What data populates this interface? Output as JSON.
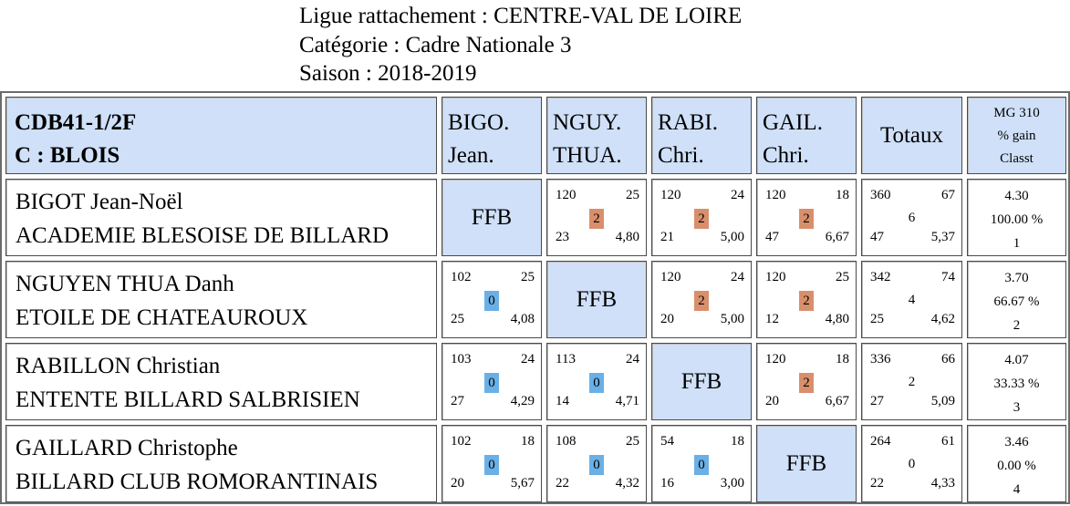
{
  "header": {
    "ligue": "Ligue rattachement : CENTRE-VAL DE LOIRE",
    "categorie": "Catégorie : Cadre Nationale 3",
    "saison": "Saison : 2018-2019"
  },
  "table": {
    "team_line1": "CDB41-1/2F",
    "team_line2": "C : BLOIS",
    "columns": [
      {
        "l1": "BIGO.",
        "l2": "Jean."
      },
      {
        "l1": "NGUY.",
        "l2": "THUA."
      },
      {
        "l1": "RABI.",
        "l2": "Chri."
      },
      {
        "l1": "GAIL.",
        "l2": "Chri."
      }
    ],
    "totals_label": "Totaux",
    "stats_header": [
      "MG 310",
      "% gain",
      "Classt"
    ],
    "ffb": "FFB",
    "rows": [
      {
        "name": "BIGOT Jean-Noël",
        "club": "ACADEMIE BLESOISE DE BILLARD",
        "cells": [
          null,
          {
            "tl": "120",
            "tr": "25",
            "bl": "23",
            "br": "4,80",
            "pts": "2",
            "win": true
          },
          {
            "tl": "120",
            "tr": "24",
            "bl": "21",
            "br": "5,00",
            "pts": "2",
            "win": true
          },
          {
            "tl": "120",
            "tr": "18",
            "bl": "47",
            "br": "6,67",
            "pts": "2",
            "win": true
          }
        ],
        "totals": {
          "tl": "360",
          "tr": "67",
          "mid": "6",
          "bl": "47",
          "br": "5,37"
        },
        "stats": {
          "mg": "4.30",
          "pct": "100.00 %",
          "rank": "1"
        }
      },
      {
        "name": "NGUYEN THUA Danh",
        "club": "ETOILE DE CHATEAUROUX",
        "cells": [
          {
            "tl": "102",
            "tr": "25",
            "bl": "25",
            "br": "4,08",
            "pts": "0",
            "win": false
          },
          null,
          {
            "tl": "120",
            "tr": "24",
            "bl": "20",
            "br": "5,00",
            "pts": "2",
            "win": true
          },
          {
            "tl": "120",
            "tr": "25",
            "bl": "12",
            "br": "4,80",
            "pts": "2",
            "win": true
          }
        ],
        "totals": {
          "tl": "342",
          "tr": "74",
          "mid": "4",
          "bl": "25",
          "br": "4,62"
        },
        "stats": {
          "mg": "3.70",
          "pct": "66.67 %",
          "rank": "2"
        }
      },
      {
        "name": "RABILLON Christian",
        "club": "ENTENTE BILLARD SALBRISIEN",
        "cells": [
          {
            "tl": "103",
            "tr": "24",
            "bl": "27",
            "br": "4,29",
            "pts": "0",
            "win": false
          },
          {
            "tl": "113",
            "tr": "24",
            "bl": "14",
            "br": "4,71",
            "pts": "0",
            "win": false
          },
          null,
          {
            "tl": "120",
            "tr": "18",
            "bl": "20",
            "br": "6,67",
            "pts": "2",
            "win": true
          }
        ],
        "totals": {
          "tl": "336",
          "tr": "66",
          "mid": "2",
          "bl": "27",
          "br": "5,09"
        },
        "stats": {
          "mg": "4.07",
          "pct": "33.33 %",
          "rank": "3"
        }
      },
      {
        "name": "GAILLARD Christophe",
        "club": "BILLARD CLUB ROMORANTINAIS",
        "cells": [
          {
            "tl": "102",
            "tr": "18",
            "bl": "20",
            "br": "5,67",
            "pts": "0",
            "win": false
          },
          {
            "tl": "108",
            "tr": "25",
            "bl": "22",
            "br": "4,32",
            "pts": "0",
            "win": false
          },
          {
            "tl": "54",
            "tr": "18",
            "bl": "16",
            "br": "3,00",
            "pts": "0",
            "win": false
          },
          null
        ],
        "totals": {
          "tl": "264",
          "tr": "61",
          "mid": "0",
          "bl": "22",
          "br": "4,33"
        },
        "stats": {
          "mg": "3.46",
          "pct": "0.00 %",
          "rank": "4"
        }
      }
    ]
  }
}
